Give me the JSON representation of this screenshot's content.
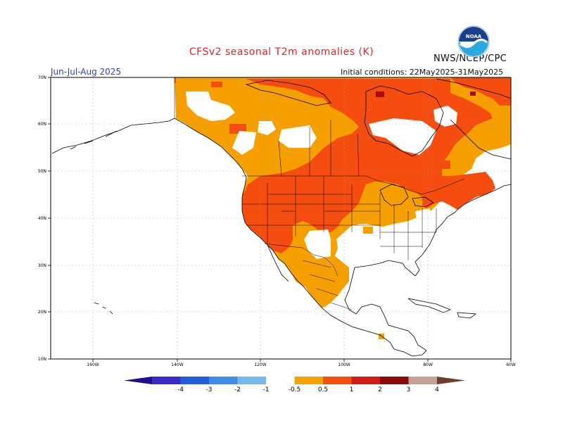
{
  "header": {
    "title": "CFSv2 seasonal T2m anomalies (K)",
    "organization": "NWS/NCEP/CPC",
    "logo_text": "NOAA",
    "season": "Jun-Jul-Aug 2025",
    "initial_conditions": "Initial conditions: 22May2025-31May2025"
  },
  "map": {
    "lat_labels": [
      "70N",
      "60N",
      "50N",
      "40N",
      "30N",
      "20N",
      "10N"
    ],
    "lon_labels": [
      "160W",
      "140W",
      "120W",
      "100W",
      "80W",
      "60W"
    ],
    "grid": true
  },
  "colorbar": {
    "labels": [
      "-4",
      "-3",
      "-2",
      "-1",
      "-0.5",
      "0.5",
      "1",
      "2",
      "3",
      "4"
    ],
    "colors": [
      "#1f0d8a",
      "#3c2cc6",
      "#1f60d8",
      "#3b8ee8",
      "#78b8f0",
      "#ffffff",
      "#f5a100",
      "#f54f0f",
      "#d31e16",
      "#8b0a0a",
      "#c7a094",
      "#6e3d2c"
    ]
  },
  "legend_colors": {
    "c05_1": "#f59f00",
    "c1_2": "#f54d10",
    "c2_3": "#a80d0d",
    "land_outline": "#000000"
  }
}
